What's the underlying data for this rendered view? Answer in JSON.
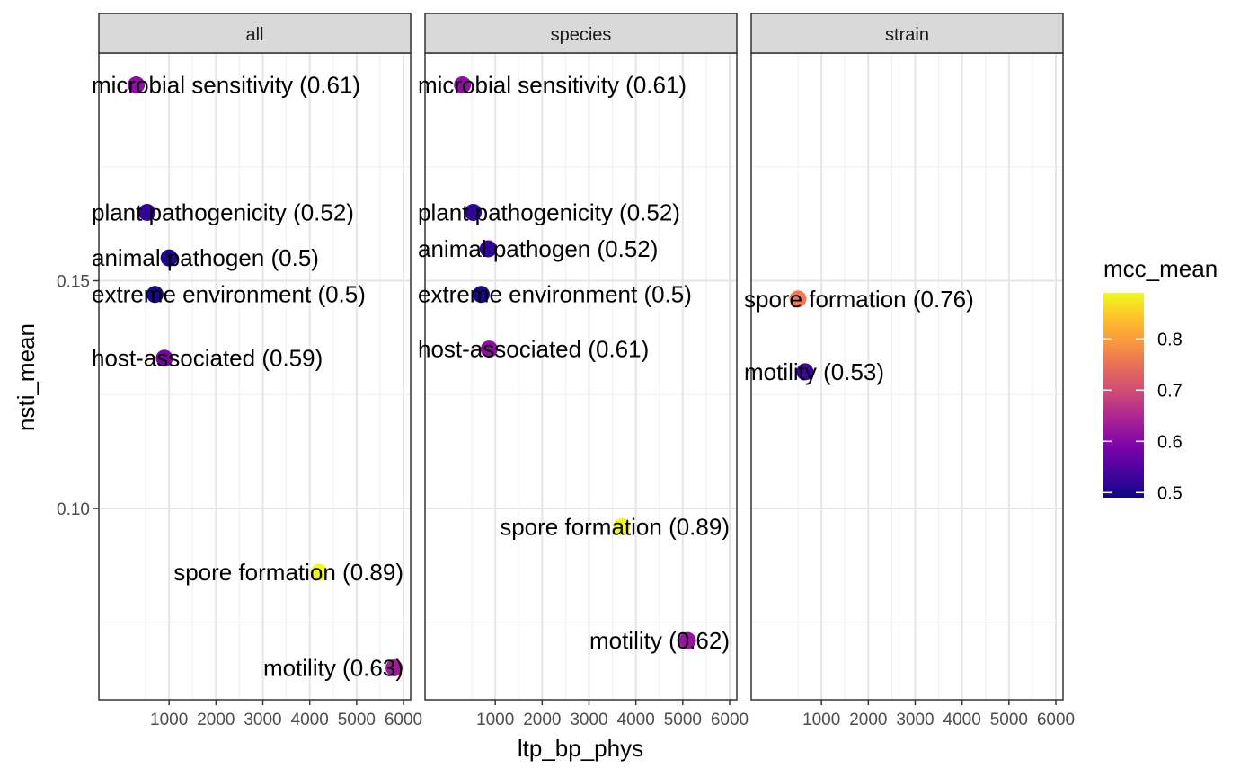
{
  "chart_data": {
    "type": "scatter",
    "xlabel": "ltp_bp_phys",
    "ylabel": "nsti_mean",
    "xlim": [
      0,
      6000
    ],
    "ylim": [
      0.058,
      0.2
    ],
    "x_ticks": [
      "1000",
      "2000",
      "3000",
      "4000",
      "5000",
      "6000"
    ],
    "x_tick_values": [
      1000,
      2000,
      3000,
      4000,
      5000,
      6000
    ],
    "y_ticks": [
      "0.10",
      "0.15"
    ],
    "y_tick_values": [
      0.1,
      0.15
    ],
    "grid": true,
    "legend": {
      "title": "mcc_mean",
      "position": "right",
      "range": [
        0.49,
        0.89
      ],
      "ticks": [
        "0.5",
        "0.6",
        "0.7",
        "0.8"
      ],
      "tick_values": [
        0.5,
        0.6,
        0.7,
        0.8
      ],
      "colorscale": "plasma"
    },
    "panels": [
      {
        "name": "all",
        "points": [
          {
            "label": "microbial sensitivity (0.61)",
            "x": 300,
            "y": 0.193,
            "mcc": 0.61
          },
          {
            "label": "plant pathogenicity (0.52)",
            "x": 530,
            "y": 0.165,
            "mcc": 0.52
          },
          {
            "label": "animal pathogen (0.5)",
            "x": 1000,
            "y": 0.155,
            "mcc": 0.5
          },
          {
            "label": "extreme environment (0.5)",
            "x": 700,
            "y": 0.147,
            "mcc": 0.5
          },
          {
            "label": "host-associated (0.59)",
            "x": 900,
            "y": 0.133,
            "mcc": 0.59
          },
          {
            "label": "spore formation (0.89)",
            "x": 4200,
            "y": 0.086,
            "mcc": 0.89
          },
          {
            "label": "motility (0.63)",
            "x": 5800,
            "y": 0.065,
            "mcc": 0.63
          }
        ]
      },
      {
        "name": "species",
        "points": [
          {
            "label": "microbial sensitivity (0.61)",
            "x": 300,
            "y": 0.193,
            "mcc": 0.61
          },
          {
            "label": "plant pathogenicity (0.52)",
            "x": 530,
            "y": 0.165,
            "mcc": 0.52
          },
          {
            "label": "animal pathogen (0.52)",
            "x": 850,
            "y": 0.157,
            "mcc": 0.52
          },
          {
            "label": "extreme environment (0.5)",
            "x": 700,
            "y": 0.147,
            "mcc": 0.5
          },
          {
            "label": "host-associated (0.61)",
            "x": 870,
            "y": 0.135,
            "mcc": 0.61
          },
          {
            "label": "spore formation (0.89)",
            "x": 3700,
            "y": 0.096,
            "mcc": 0.89
          },
          {
            "label": "motility (0.62)",
            "x": 5100,
            "y": 0.071,
            "mcc": 0.62
          }
        ]
      },
      {
        "name": "strain",
        "points": [
          {
            "label": "spore formation (0.76)",
            "x": 500,
            "y": 0.146,
            "mcc": 0.76
          },
          {
            "label": "motility (0.53)",
            "x": 650,
            "y": 0.13,
            "mcc": 0.53
          }
        ]
      }
    ]
  }
}
